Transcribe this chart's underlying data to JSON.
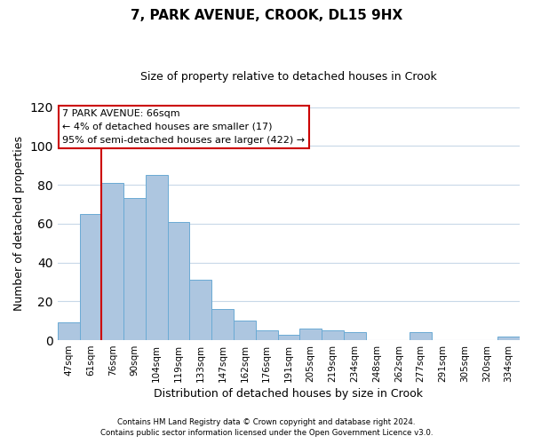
{
  "title": "7, PARK AVENUE, CROOK, DL15 9HX",
  "subtitle": "Size of property relative to detached houses in Crook",
  "xlabel": "Distribution of detached houses by size in Crook",
  "ylabel": "Number of detached properties",
  "bar_labels": [
    "47sqm",
    "61sqm",
    "76sqm",
    "90sqm",
    "104sqm",
    "119sqm",
    "133sqm",
    "147sqm",
    "162sqm",
    "176sqm",
    "191sqm",
    "205sqm",
    "219sqm",
    "234sqm",
    "248sqm",
    "262sqm",
    "277sqm",
    "291sqm",
    "305sqm",
    "320sqm",
    "334sqm"
  ],
  "bar_values": [
    9,
    65,
    81,
    73,
    85,
    61,
    31,
    16,
    10,
    5,
    3,
    6,
    5,
    4,
    0,
    0,
    4,
    0,
    0,
    0,
    2
  ],
  "bar_color": "#adc6e0",
  "bar_edge_color": "#6aaad4",
  "ylim": [
    0,
    120
  ],
  "yticks": [
    0,
    20,
    40,
    60,
    80,
    100,
    120
  ],
  "annotation_title": "7 PARK AVENUE: 66sqm",
  "annotation_line1": "← 4% of detached houses are smaller (17)",
  "annotation_line2": "95% of semi-detached houses are larger (422) →",
  "footer1": "Contains HM Land Registry data © Crown copyright and database right 2024.",
  "footer2": "Contains public sector information licensed under the Open Government Licence v3.0.",
  "annotation_box_color": "#ffffff",
  "annotation_box_edge": "#cc0000",
  "redline_color": "#cc0000",
  "background_color": "#ffffff",
  "grid_color": "#c8d8e8",
  "redline_bar_index": 1
}
